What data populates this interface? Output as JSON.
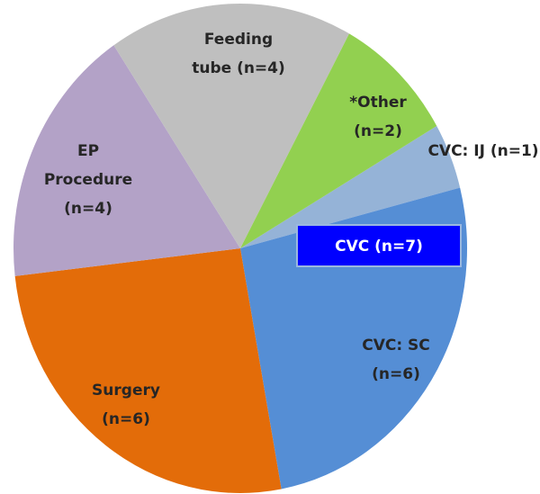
{
  "chart_data": {
    "type": "pie",
    "categories": [
      [
        "CVC: IJ (n=1)"
      ],
      [
        "CVC: SC",
        "(n=6)"
      ],
      [
        "Surgery",
        "(n=6)"
      ],
      [
        "EP",
        "Procedure",
        "(n=4)"
      ],
      [
        "Feeding",
        "tube (n=4)"
      ],
      [
        "*Other",
        "(n=2)"
      ]
    ],
    "values": [
      1,
      6,
      6,
      4,
      4,
      2
    ],
    "colors": [
      "#95b3d7",
      "#558ed5",
      "#e36c09",
      "#b3a2c7",
      "#bfbfbf",
      "#92d050"
    ],
    "annotation": "CVC (n=7)"
  }
}
